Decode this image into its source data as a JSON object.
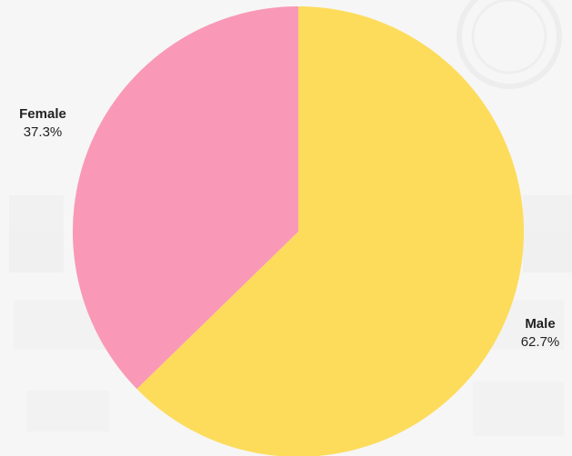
{
  "chart_data": {
    "type": "pie",
    "slices": [
      {
        "label": "Male",
        "percent_label": "62.7%",
        "value": 62.7,
        "color": "#fddc5c"
      },
      {
        "label": "Female",
        "percent_label": "37.3%",
        "value": 37.3,
        "color": "#f999b7"
      }
    ],
    "start": "top",
    "direction": "clockwise"
  },
  "background": {
    "color": "#f6f6f6",
    "watermark": true
  }
}
